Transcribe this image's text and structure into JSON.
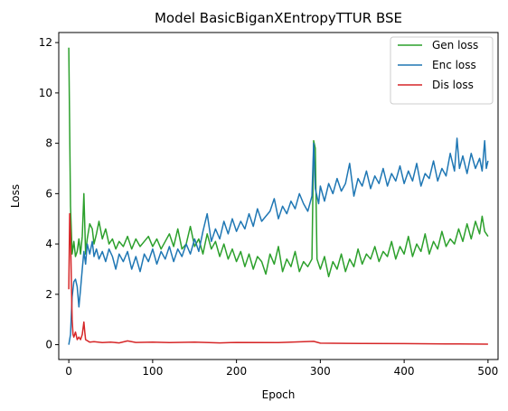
{
  "chart_data": {
    "type": "line",
    "title": "Model BasicBiganXEntropyTTUR BSE",
    "xlabel": "Epoch",
    "ylabel": "Loss",
    "xlim": [
      -12,
      512
    ],
    "ylim": [
      -0.59,
      12.4
    ],
    "xticks": [
      0,
      100,
      200,
      300,
      400,
      500
    ],
    "yticks": [
      0,
      2,
      4,
      6,
      8,
      10,
      12
    ],
    "grid": false,
    "legend_position": "top-right",
    "series": [
      {
        "name": "Gen loss",
        "color": "#2ca02c",
        "points": [
          [
            0,
            11.8
          ],
          [
            2,
            5.5
          ],
          [
            4,
            3.6
          ],
          [
            6,
            4.1
          ],
          [
            8,
            3.5
          ],
          [
            10,
            3.7
          ],
          [
            12,
            4.2
          ],
          [
            14,
            3.6
          ],
          [
            16,
            4.3
          ],
          [
            18,
            6.0
          ],
          [
            20,
            3.6
          ],
          [
            22,
            4.2
          ],
          [
            25,
            4.8
          ],
          [
            28,
            4.6
          ],
          [
            30,
            4.0
          ],
          [
            33,
            4.4
          ],
          [
            36,
            4.9
          ],
          [
            40,
            4.2
          ],
          [
            44,
            4.6
          ],
          [
            48,
            4.0
          ],
          [
            52,
            4.2
          ],
          [
            56,
            3.8
          ],
          [
            60,
            4.1
          ],
          [
            65,
            3.9
          ],
          [
            70,
            4.3
          ],
          [
            75,
            3.8
          ],
          [
            80,
            4.2
          ],
          [
            85,
            3.9
          ],
          [
            90,
            4.1
          ],
          [
            95,
            4.3
          ],
          [
            100,
            3.9
          ],
          [
            105,
            4.2
          ],
          [
            110,
            3.8
          ],
          [
            115,
            4.1
          ],
          [
            120,
            4.4
          ],
          [
            125,
            3.9
          ],
          [
            130,
            4.6
          ],
          [
            135,
            3.8
          ],
          [
            140,
            4.0
          ],
          [
            145,
            4.7
          ],
          [
            150,
            3.9
          ],
          [
            155,
            4.2
          ],
          [
            160,
            3.6
          ],
          [
            165,
            4.4
          ],
          [
            170,
            3.8
          ],
          [
            175,
            4.1
          ],
          [
            180,
            3.5
          ],
          [
            185,
            4.0
          ],
          [
            190,
            3.4
          ],
          [
            195,
            3.8
          ],
          [
            200,
            3.3
          ],
          [
            205,
            3.7
          ],
          [
            210,
            3.1
          ],
          [
            215,
            3.6
          ],
          [
            220,
            3.0
          ],
          [
            225,
            3.5
          ],
          [
            230,
            3.3
          ],
          [
            235,
            2.8
          ],
          [
            240,
            3.6
          ],
          [
            245,
            3.2
          ],
          [
            250,
            3.9
          ],
          [
            255,
            2.9
          ],
          [
            260,
            3.4
          ],
          [
            265,
            3.1
          ],
          [
            270,
            3.7
          ],
          [
            275,
            2.9
          ],
          [
            280,
            3.3
          ],
          [
            285,
            3.1
          ],
          [
            290,
            3.4
          ],
          [
            292,
            8.1
          ],
          [
            294,
            7.8
          ],
          [
            296,
            3.4
          ],
          [
            300,
            3.0
          ],
          [
            305,
            3.5
          ],
          [
            310,
            2.7
          ],
          [
            315,
            3.3
          ],
          [
            320,
            3.0
          ],
          [
            325,
            3.6
          ],
          [
            330,
            2.9
          ],
          [
            335,
            3.4
          ],
          [
            340,
            3.1
          ],
          [
            345,
            3.8
          ],
          [
            350,
            3.2
          ],
          [
            355,
            3.6
          ],
          [
            360,
            3.4
          ],
          [
            365,
            3.9
          ],
          [
            370,
            3.3
          ],
          [
            375,
            3.7
          ],
          [
            380,
            3.5
          ],
          [
            385,
            4.1
          ],
          [
            390,
            3.4
          ],
          [
            395,
            3.9
          ],
          [
            400,
            3.6
          ],
          [
            405,
            4.3
          ],
          [
            410,
            3.5
          ],
          [
            415,
            4.0
          ],
          [
            420,
            3.7
          ],
          [
            425,
            4.4
          ],
          [
            430,
            3.6
          ],
          [
            435,
            4.1
          ],
          [
            440,
            3.8
          ],
          [
            445,
            4.5
          ],
          [
            450,
            3.9
          ],
          [
            455,
            4.2
          ],
          [
            460,
            4.0
          ],
          [
            465,
            4.6
          ],
          [
            470,
            4.1
          ],
          [
            475,
            4.8
          ],
          [
            480,
            4.2
          ],
          [
            485,
            4.9
          ],
          [
            490,
            4.4
          ],
          [
            493,
            5.1
          ],
          [
            496,
            4.5
          ],
          [
            500,
            4.3
          ]
        ]
      },
      {
        "name": "Enc loss",
        "color": "#1f77b4",
        "points": [
          [
            0,
            0.0
          ],
          [
            2,
            0.4
          ],
          [
            4,
            1.9
          ],
          [
            6,
            2.5
          ],
          [
            8,
            2.6
          ],
          [
            10,
            2.3
          ],
          [
            12,
            1.5
          ],
          [
            14,
            2.2
          ],
          [
            16,
            3.0
          ],
          [
            18,
            3.7
          ],
          [
            20,
            3.2
          ],
          [
            22,
            4.0
          ],
          [
            25,
            3.6
          ],
          [
            28,
            4.1
          ],
          [
            30,
            3.5
          ],
          [
            33,
            3.8
          ],
          [
            36,
            3.4
          ],
          [
            40,
            3.7
          ],
          [
            44,
            3.3
          ],
          [
            48,
            3.8
          ],
          [
            52,
            3.5
          ],
          [
            56,
            3.0
          ],
          [
            60,
            3.6
          ],
          [
            65,
            3.3
          ],
          [
            70,
            3.7
          ],
          [
            75,
            3.0
          ],
          [
            80,
            3.5
          ],
          [
            85,
            2.9
          ],
          [
            90,
            3.6
          ],
          [
            95,
            3.3
          ],
          [
            100,
            3.8
          ],
          [
            105,
            3.2
          ],
          [
            110,
            3.7
          ],
          [
            115,
            3.4
          ],
          [
            120,
            3.9
          ],
          [
            125,
            3.3
          ],
          [
            130,
            3.8
          ],
          [
            135,
            3.5
          ],
          [
            140,
            4.0
          ],
          [
            145,
            3.6
          ],
          [
            150,
            4.2
          ],
          [
            155,
            3.7
          ],
          [
            160,
            4.5
          ],
          [
            165,
            5.2
          ],
          [
            170,
            4.1
          ],
          [
            175,
            4.6
          ],
          [
            180,
            4.2
          ],
          [
            185,
            4.9
          ],
          [
            190,
            4.4
          ],
          [
            195,
            5.0
          ],
          [
            200,
            4.5
          ],
          [
            205,
            4.9
          ],
          [
            210,
            4.6
          ],
          [
            215,
            5.2
          ],
          [
            220,
            4.7
          ],
          [
            225,
            5.4
          ],
          [
            230,
            4.9
          ],
          [
            235,
            5.1
          ],
          [
            240,
            5.3
          ],
          [
            245,
            5.8
          ],
          [
            250,
            5.0
          ],
          [
            255,
            5.5
          ],
          [
            260,
            5.2
          ],
          [
            265,
            5.7
          ],
          [
            270,
            5.4
          ],
          [
            275,
            6.0
          ],
          [
            280,
            5.6
          ],
          [
            285,
            5.3
          ],
          [
            290,
            5.9
          ],
          [
            292,
            8.0
          ],
          [
            294,
            6.2
          ],
          [
            298,
            5.6
          ],
          [
            300,
            6.3
          ],
          [
            305,
            5.7
          ],
          [
            310,
            6.4
          ],
          [
            315,
            6.0
          ],
          [
            320,
            6.6
          ],
          [
            325,
            6.1
          ],
          [
            330,
            6.4
          ],
          [
            335,
            7.2
          ],
          [
            340,
            5.9
          ],
          [
            345,
            6.6
          ],
          [
            350,
            6.3
          ],
          [
            355,
            6.9
          ],
          [
            360,
            6.2
          ],
          [
            365,
            6.7
          ],
          [
            370,
            6.4
          ],
          [
            375,
            7.0
          ],
          [
            380,
            6.3
          ],
          [
            385,
            6.8
          ],
          [
            390,
            6.5
          ],
          [
            395,
            7.1
          ],
          [
            400,
            6.4
          ],
          [
            405,
            6.9
          ],
          [
            410,
            6.5
          ],
          [
            415,
            7.2
          ],
          [
            420,
            6.3
          ],
          [
            425,
            6.8
          ],
          [
            430,
            6.6
          ],
          [
            435,
            7.3
          ],
          [
            440,
            6.5
          ],
          [
            445,
            7.0
          ],
          [
            450,
            6.7
          ],
          [
            455,
            7.6
          ],
          [
            460,
            6.9
          ],
          [
            463,
            8.2
          ],
          [
            466,
            7.0
          ],
          [
            470,
            7.5
          ],
          [
            475,
            6.8
          ],
          [
            480,
            7.6
          ],
          [
            485,
            7.0
          ],
          [
            490,
            7.4
          ],
          [
            493,
            6.9
          ],
          [
            496,
            8.1
          ],
          [
            498,
            7.0
          ],
          [
            500,
            7.3
          ]
        ]
      },
      {
        "name": "Dis loss",
        "color": "#d62728",
        "points": [
          [
            0,
            2.2
          ],
          [
            1,
            5.2
          ],
          [
            2,
            4.4
          ],
          [
            3,
            2.6
          ],
          [
            4,
            1.0
          ],
          [
            5,
            0.4
          ],
          [
            6,
            0.3
          ],
          [
            8,
            0.5
          ],
          [
            10,
            0.2
          ],
          [
            12,
            0.3
          ],
          [
            14,
            0.2
          ],
          [
            16,
            0.4
          ],
          [
            18,
            0.9
          ],
          [
            19,
            0.5
          ],
          [
            20,
            0.2
          ],
          [
            25,
            0.1
          ],
          [
            30,
            0.12
          ],
          [
            40,
            0.08
          ],
          [
            50,
            0.1
          ],
          [
            60,
            0.07
          ],
          [
            70,
            0.15
          ],
          [
            80,
            0.09
          ],
          [
            100,
            0.1
          ],
          [
            120,
            0.08
          ],
          [
            150,
            0.1
          ],
          [
            180,
            0.07
          ],
          [
            200,
            0.09
          ],
          [
            250,
            0.08
          ],
          [
            292,
            0.13
          ],
          [
            300,
            0.06
          ],
          [
            350,
            0.05
          ],
          [
            400,
            0.04
          ],
          [
            450,
            0.03
          ],
          [
            500,
            0.02
          ]
        ]
      }
    ]
  }
}
